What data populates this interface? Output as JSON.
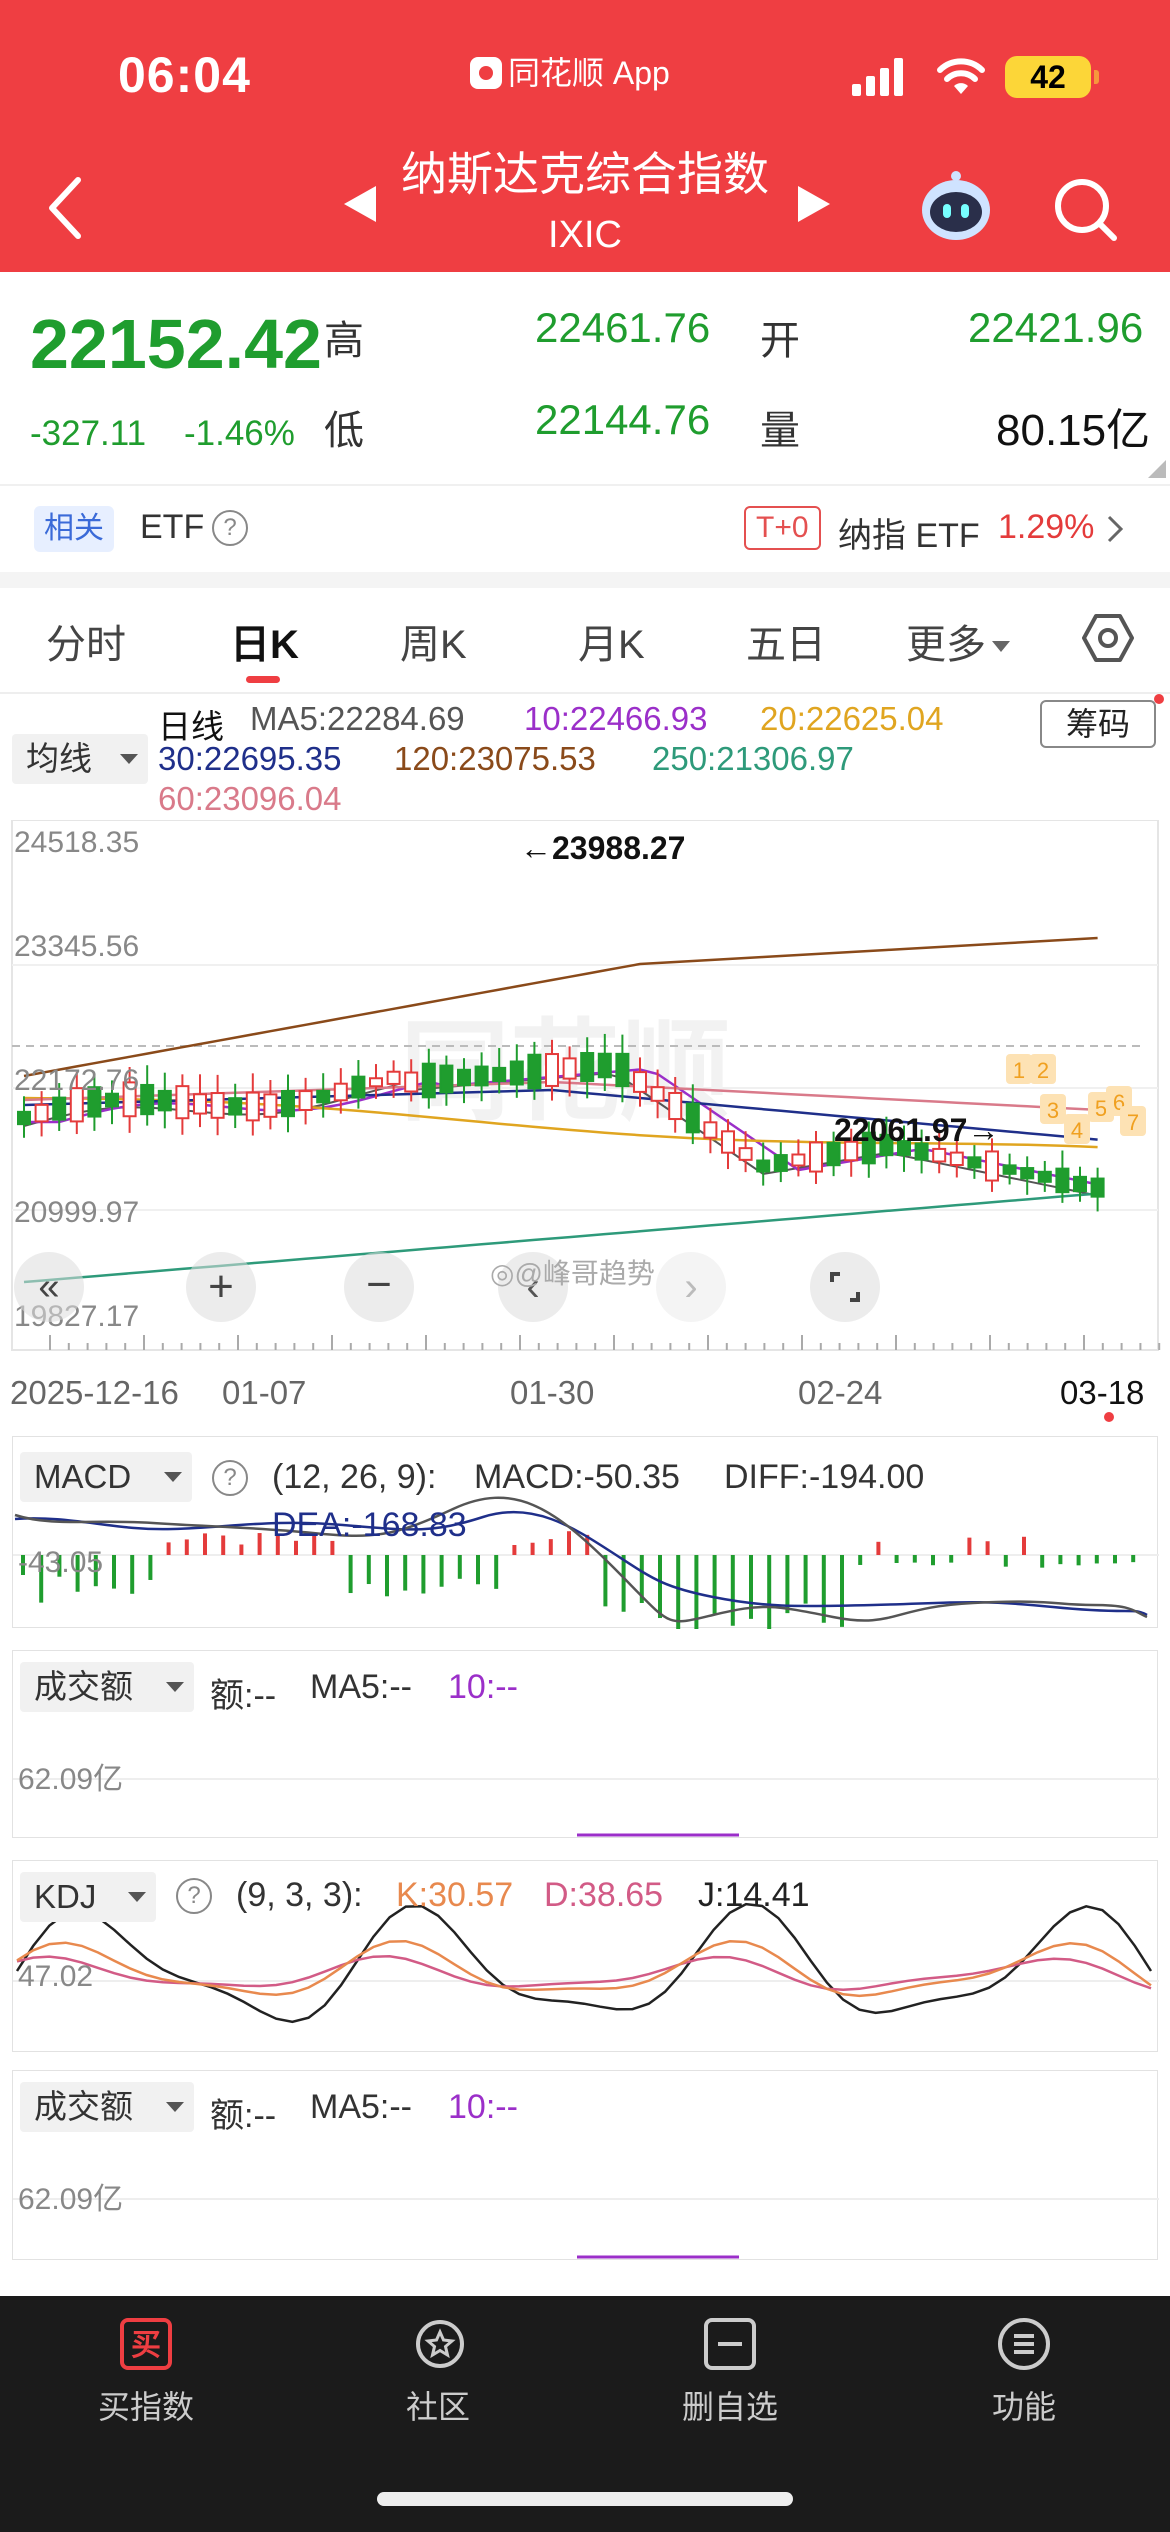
{
  "status": {
    "time": "06:04",
    "app": "同花顺 App",
    "battery": "42"
  },
  "header": {
    "title": "纳斯达克综合指数",
    "code": "IXIC"
  },
  "quote": {
    "price": "22152.42",
    "change": "-327.11",
    "change_pct": "-1.46%",
    "high_label": "高",
    "high": "22461.76",
    "open_label": "开",
    "open": "22421.96",
    "low_label": "低",
    "low": "22144.76",
    "volume_label": "量",
    "volume": "80.15亿"
  },
  "related": {
    "tag": "相关",
    "etf": "ETF",
    "t0": "T+0",
    "etf_name": "纳指 ETF",
    "etf_pct": "1.29%"
  },
  "tabs": [
    "分时",
    "日K",
    "周K",
    "月K",
    "五日",
    "更多"
  ],
  "kline": {
    "period_label": "日线",
    "ma5": "MA5:22284.69",
    "ma10": "10:22466.93",
    "ma20": "20:22625.04",
    "ma30": "30:22695.35",
    "ma120": "120:23075.53",
    "ma250": "250:21306.97",
    "ma60": "60:23096.04",
    "chips_button": "筹码",
    "y_ticks": [
      "24518.35",
      "23345.56",
      "22172.76",
      "20999.97",
      "19827.17"
    ],
    "high_mark": "←23988.27",
    "low_mark": "22061.97→",
    "dates": [
      "2025-12-16",
      "01-07",
      "01-30",
      "02-24",
      "03-18"
    ],
    "watermark": "同花顺",
    "weibo": "@峰哥趋势",
    "seq_tags": [
      "1",
      "2",
      "3",
      "4",
      "5",
      "6",
      "7"
    ]
  },
  "macd": {
    "select": "MACD",
    "params": "(12, 26, 9):",
    "macd": "MACD:-50.35",
    "diff": "DIFF:-194.00",
    "dea": "DEA:-168.83",
    "axis": "-43.05"
  },
  "amount1": {
    "select": "成交额",
    "amt": "额:--",
    "ma5": "MA5:--",
    "ma10": "10:--",
    "axis": "62.09亿"
  },
  "kdj": {
    "select": "KDJ",
    "params": "(9, 3, 3):",
    "k": "K:30.57",
    "d": "D:38.65",
    "j": "J:14.41",
    "axis": "47.02"
  },
  "amount2": {
    "select": "成交额",
    "amt": "额:--",
    "ma5": "MA5:--",
    "ma10": "10:--",
    "axis": "62.09亿"
  },
  "nav": [
    {
      "label": "买指数",
      "icon": "买"
    },
    {
      "label": "社区",
      "icon": ""
    },
    {
      "label": "删自选",
      "icon": ""
    },
    {
      "label": "功能",
      "icon": ""
    }
  ],
  "colors": {
    "header_red": "#ef3e42",
    "down_green": "#1f9d2e",
    "up_red": "#e43b3b",
    "ma5": "#555555",
    "ma10": "#9b2fc9",
    "ma20": "#e0a520",
    "ma30": "#1f2f8a",
    "ma120": "#8a4a1a",
    "ma250": "#2e9a7a",
    "ma60": "#d97a8a"
  }
}
